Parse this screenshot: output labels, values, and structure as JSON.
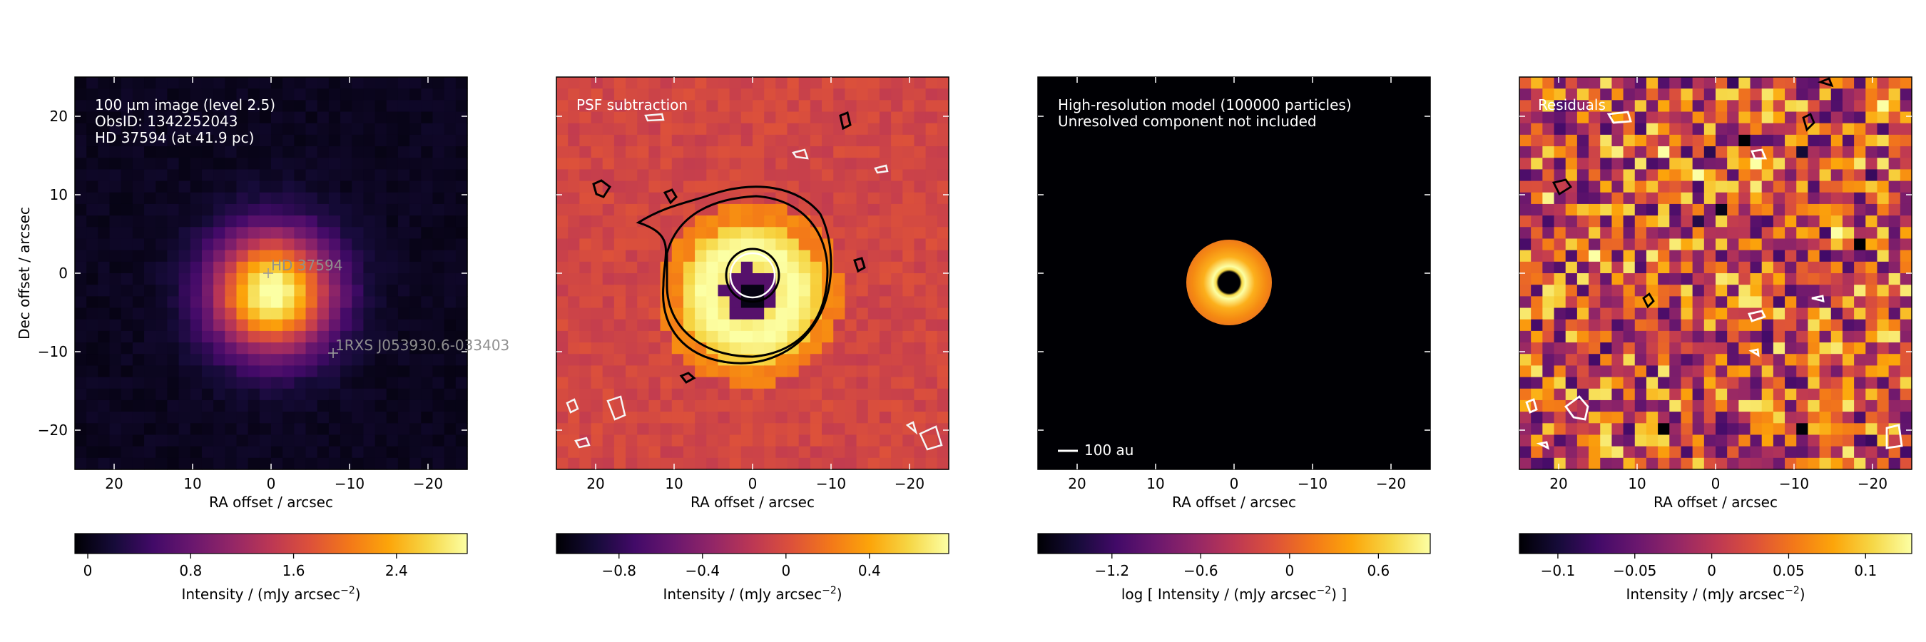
{
  "chart_data": [
    {
      "type": "heatmap",
      "title": "",
      "annotations": [
        "100 µm image (level 2.5)",
        "ObsID: 1342252043",
        "HD 37594 (at 41.9 pc)"
      ],
      "sources": [
        {
          "label": "HD 37594",
          "x": 0.5,
          "y": 0.0
        },
        {
          "label": "1RXS J053930.6-033403",
          "x": -7.6,
          "y": -10.0
        }
      ],
      "xlabel": "RA offset / arcsec",
      "ylabel": "Dec offset / arcsec",
      "xlim": [
        25,
        -25
      ],
      "ylim": [
        -25,
        25
      ],
      "xticks": [
        20,
        10,
        0,
        -10,
        -20
      ],
      "yticks": [
        20,
        10,
        0,
        -10,
        -20
      ],
      "colorbar": {
        "label": "Intensity / (mJy arcsec",
        "exp": "−2",
        "suffix": ")",
        "range": [
          -0.1,
          2.95
        ],
        "ticks": [
          0,
          0.8,
          1.6,
          2.4
        ]
      }
    },
    {
      "type": "heatmap",
      "annotations": [
        "PSF subtraction"
      ],
      "xlabel": "RA offset / arcsec",
      "xlim": [
        25,
        -25
      ],
      "ylim": [
        -25,
        25
      ],
      "xticks": [
        20,
        10,
        0,
        -10,
        -20
      ],
      "colorbar": {
        "label": "Intensity / (mJy arcsec",
        "exp": "−2",
        "suffix": ")",
        "range": [
          -1.1,
          0.78
        ],
        "ticks": [
          -0.8,
          -0.4,
          0,
          0.4
        ]
      }
    },
    {
      "type": "heatmap",
      "annotations": [
        "High-resolution model (100000 particles)",
        "Unresolved component not included"
      ],
      "scalebar": "100 au",
      "xlabel": "RA offset / arcsec",
      "xlim": [
        25,
        -25
      ],
      "ylim": [
        -25,
        25
      ],
      "xticks": [
        20,
        10,
        0,
        -10,
        -20
      ],
      "colorbar": {
        "label": "log [ Intensity / (mJy arcsec",
        "exp": "−2",
        "suffix": ") ]",
        "range": [
          -1.7,
          0.95
        ],
        "ticks": [
          -1.2,
          -0.6,
          0,
          0.6
        ]
      }
    },
    {
      "type": "heatmap",
      "annotations": [
        "Residuals"
      ],
      "xlabel": "RA offset / arcsec",
      "xlim": [
        25,
        -25
      ],
      "ylim": [
        -25,
        25
      ],
      "xticks": [
        20,
        10,
        0,
        -10,
        -20
      ],
      "colorbar": {
        "label": "Intensity / (mJy arcsec",
        "exp": "−2",
        "suffix": ")",
        "range": [
          -0.125,
          0.13
        ],
        "ticks": [
          -0.1,
          -0.05,
          0,
          0.05,
          0.1
        ]
      }
    }
  ],
  "colormap": "inferno",
  "tick_labels": {
    "x": [
      "20",
      "10",
      "0",
      "−10",
      "−20"
    ],
    "y": [
      "20",
      "10",
      "0",
      "−10",
      "−20"
    ]
  },
  "colorbar_tick_labels": [
    [
      "0",
      "0.8",
      "1.6",
      "2.4"
    ],
    [
      "−0.8",
      "−0.4",
      "0",
      "0.4"
    ],
    [
      "−1.2",
      "−0.6",
      "0",
      "0.6"
    ],
    [
      "−0.1",
      "−0.05",
      "0",
      "0.05",
      "0.1"
    ]
  ]
}
